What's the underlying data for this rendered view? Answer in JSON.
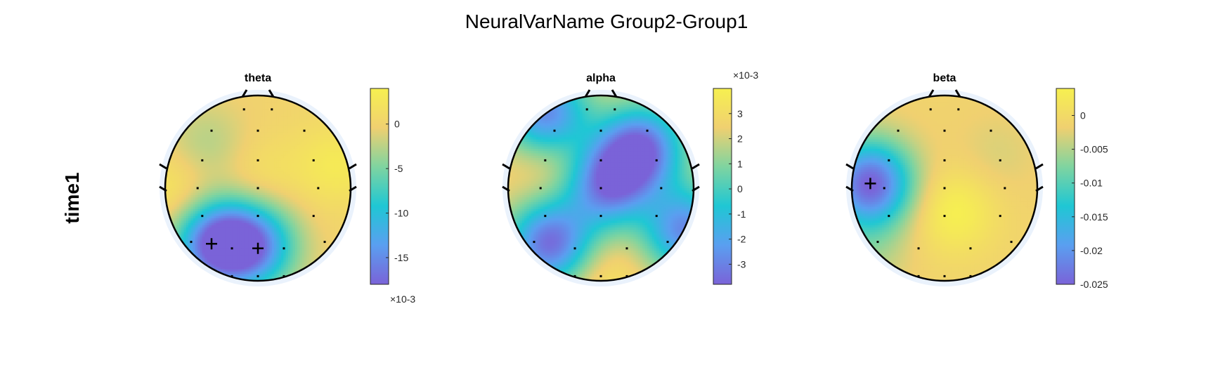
{
  "title": "NeuralVarName Group2-Group1",
  "row_label": "time1",
  "colormap": [
    "#7a63d8",
    "#5a9ff0",
    "#1fc7d4",
    "#7fd4a0",
    "#f0d070",
    "#f6f050"
  ],
  "chart_data": [
    {
      "type": "heatmap",
      "title": "theta",
      "colorbar": {
        "ticks": [
          0,
          -5,
          -10,
          -15
        ],
        "tick_labels": [
          "0",
          "-5",
          "-10",
          "-15"
        ],
        "range": [
          -18,
          4
        ],
        "exponent_label": "×10-3",
        "exponent_position": "bottom"
      },
      "blobs": [
        {
          "x": -0.45,
          "y": -0.6,
          "v": -17
        },
        {
          "x": -0.05,
          "y": -0.62,
          "v": -14
        },
        {
          "x": -0.55,
          "y": 0.45,
          "v": -3
        },
        {
          "x": 0.0,
          "y": 0.1,
          "v": 2
        },
        {
          "x": 0.85,
          "y": 0.25,
          "v": 3
        },
        {
          "x": -0.9,
          "y": -0.05,
          "v": 3
        }
      ],
      "markers": [
        {
          "x": -0.5,
          "y": -0.6
        },
        {
          "x": 0.0,
          "y": -0.65
        }
      ]
    },
    {
      "type": "heatmap",
      "title": "alpha",
      "colorbar": {
        "ticks": [
          3,
          2,
          1,
          0,
          -1,
          -2,
          -3
        ],
        "tick_labels": [
          "3",
          "2",
          "1",
          "0",
          "-1",
          "-2",
          "-3"
        ],
        "range": [
          -3.8,
          4
        ],
        "exponent_label": "×10-3",
        "exponent_position": "top"
      },
      "blobs": [
        {
          "x": -0.55,
          "y": 0.35,
          "v": 3.5
        },
        {
          "x": 0.65,
          "y": -0.35,
          "v": 3
        },
        {
          "x": 0.0,
          "y": -0.95,
          "v": 3.5
        },
        {
          "x": 0.25,
          "y": 0.25,
          "v": 0.5
        },
        {
          "x": -0.55,
          "y": -0.6,
          "v": -3.5
        },
        {
          "x": -0.6,
          "y": 0.8,
          "v": -3
        },
        {
          "x": 0.45,
          "y": 0.45,
          "v": -2.5
        },
        {
          "x": 0.05,
          "y": 0.0,
          "v": -2
        },
        {
          "x": 0.9,
          "y": -0.45,
          "v": -3
        }
      ],
      "markers": []
    },
    {
      "type": "heatmap",
      "title": "beta",
      "colorbar": {
        "ticks": [
          0,
          -0.005,
          -0.01,
          -0.015,
          -0.02,
          -0.025
        ],
        "tick_labels": [
          "0",
          "-0.005",
          "-0.01",
          "-0.015",
          "-0.02",
          "-0.025"
        ],
        "range": [
          -0.025,
          0.004
        ],
        "exponent_label": "",
        "exponent_position": "none"
      },
      "blobs": [
        {
          "x": -0.8,
          "y": 0.05,
          "v": -0.025
        },
        {
          "x": 0.1,
          "y": -0.25,
          "v": 0.004
        },
        {
          "x": 0.55,
          "y": 0.35,
          "v": -0.003
        },
        {
          "x": -0.85,
          "y": -0.65,
          "v": -0.005
        }
      ],
      "markers": [
        {
          "x": -0.8,
          "y": 0.05
        }
      ]
    }
  ]
}
